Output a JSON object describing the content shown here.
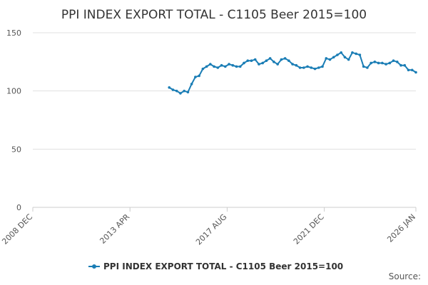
{
  "chart_data": {
    "type": "line",
    "title": "PPI INDEX EXPORT TOTAL - C1105 Beer 2015=100",
    "source": "Source:",
    "x": [
      "2015-01",
      "2015-03",
      "2015-05",
      "2015-07",
      "2015-09",
      "2015-11",
      "2016-01",
      "2016-03",
      "2016-05",
      "2016-07",
      "2016-09",
      "2016-11",
      "2017-01",
      "2017-03",
      "2017-05",
      "2017-07",
      "2017-09",
      "2017-11",
      "2018-01",
      "2018-03",
      "2018-05",
      "2018-07",
      "2018-09",
      "2018-11",
      "2019-01",
      "2019-03",
      "2019-05",
      "2019-07",
      "2019-09",
      "2019-11",
      "2020-01",
      "2020-03",
      "2020-05",
      "2020-07",
      "2020-09",
      "2020-11",
      "2021-01",
      "2021-03",
      "2021-05",
      "2021-07",
      "2021-09",
      "2021-11",
      "2022-01",
      "2022-03",
      "2022-05",
      "2022-07",
      "2022-09",
      "2022-11",
      "2023-01",
      "2023-03",
      "2023-05",
      "2023-07",
      "2023-09",
      "2023-11",
      "2024-01",
      "2024-03",
      "2024-05",
      "2024-07",
      "2024-09",
      "2024-11",
      "2025-01",
      "2025-03",
      "2025-05",
      "2025-07",
      "2025-09",
      "2025-11",
      "2026-01"
    ],
    "series": [
      {
        "name": "PPI INDEX EXPORT TOTAL - C1105 Beer 2015=100",
        "color": "#1a7db5",
        "values": [
          103,
          101,
          100,
          98,
          100,
          99,
          106,
          112,
          113,
          119,
          121,
          123,
          121,
          120,
          122,
          121,
          123,
          122,
          121,
          121,
          124,
          126,
          126,
          127,
          123,
          124,
          126,
          128,
          125,
          123,
          127,
          128,
          126,
          123,
          122,
          120,
          120,
          121,
          120,
          119,
          120,
          121,
          128,
          127,
          129,
          131,
          133,
          129,
          127,
          133,
          132,
          131,
          121,
          120,
          124,
          125,
          124,
          124,
          123,
          124,
          126,
          125,
          122,
          122,
          118,
          118,
          116
        ]
      }
    ],
    "xlim": [
      "2008-12",
      "2026-01"
    ],
    "xticks": [
      {
        "value": "2008-12",
        "label": "2008 DEC"
      },
      {
        "value": "2013-04",
        "label": "2013 APR"
      },
      {
        "value": "2017-08",
        "label": "2017 AUG"
      },
      {
        "value": "2021-12",
        "label": "2021 DEC"
      },
      {
        "value": "2026-01",
        "label": "2026 JAN"
      }
    ],
    "ylim": [
      0,
      150
    ],
    "yticks": [
      0,
      50,
      100,
      150
    ],
    "grid": true
  }
}
